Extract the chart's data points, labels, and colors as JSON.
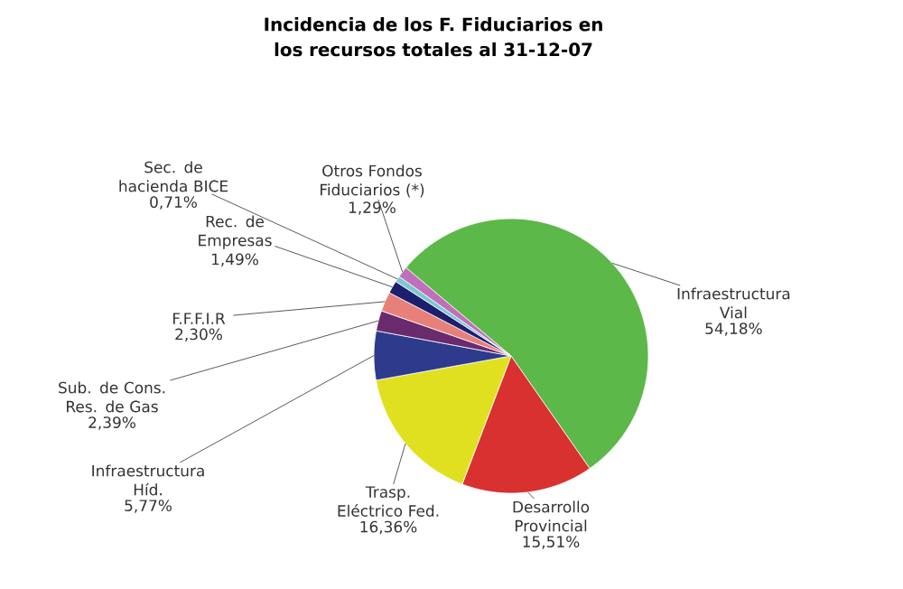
{
  "chart_data": {
    "type": "pie",
    "title": "Incidencia de los F. Fiduciarios en los recursos totales al 31-12-07",
    "categories": [
      "Infraestructura Vial",
      "Desarrollo Provincial",
      "Trasp. Eléctrico Fed.",
      "Infraestructura Híd.",
      "Sub. de Cons. Res. de Gas",
      "F.F.F.I.R",
      "Rec. de Empresas",
      "Sec. de hacienda BICE",
      "Otros Fondos Fiduciarios (*)"
    ],
    "values": [
      54.18,
      15.51,
      16.36,
      5.77,
      2.39,
      2.3,
      1.49,
      0.71,
      1.29
    ],
    "value_labels": [
      "54,18%",
      "15,51%",
      "16,36%",
      "5,77%",
      "2,39%",
      "2,30%",
      "1,49%",
      "0,71%",
      "1,29%"
    ],
    "colors": [
      "#5cb848",
      "#d93030",
      "#e0e020",
      "#2e3a8c",
      "#6a2a6e",
      "#e8807a",
      "#1e1e6e",
      "#7cc8d0",
      "#c070b8"
    ]
  }
}
